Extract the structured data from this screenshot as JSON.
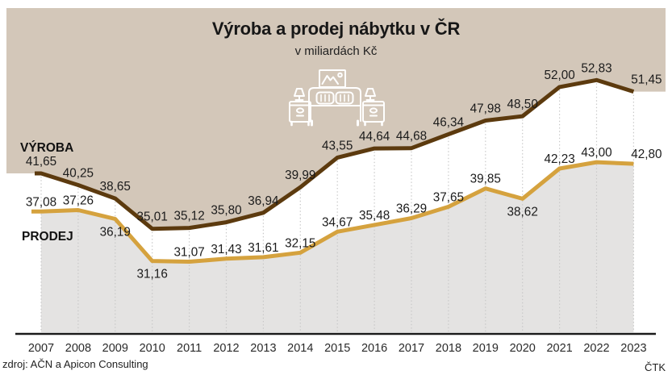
{
  "header": {
    "title": "Výroba a prodej nábytku v ČR",
    "subtitle": "v miliardách Kč"
  },
  "footer": {
    "source": "zdroj: AČN a Apicon Consulting",
    "agency": "ČTK"
  },
  "icon": {
    "name": "bedroom-furniture",
    "color": "#ffffff"
  },
  "colors": {
    "background": "#ffffff",
    "area_above": "#d3c7b9",
    "area_below": "#e4e3e2",
    "vyroba_line": "#5c3a0e",
    "prodej_line": "#d5a23e",
    "grid": "#c7c7c7",
    "axis": "#1a1a1a",
    "label_text": "#1b1b1b"
  },
  "chart_data": {
    "type": "line",
    "title": "Výroba a prodej nábytku v ČR",
    "subtitle": "v miliardách Kč",
    "units": "mld. Kč",
    "x": [
      2007,
      2008,
      2009,
      2010,
      2011,
      2012,
      2013,
      2014,
      2015,
      2016,
      2017,
      2018,
      2019,
      2020,
      2021,
      2022,
      2023
    ],
    "series": [
      {
        "name": "VÝROBA",
        "color": "#5c3a0e",
        "values": [
          41.65,
          40.25,
          38.65,
          35.01,
          35.12,
          35.8,
          36.94,
          39.99,
          43.55,
          44.64,
          44.68,
          46.34,
          47.98,
          48.5,
          52.0,
          52.83,
          51.45
        ],
        "labels": [
          "41,65",
          "40,25",
          "38,65",
          "35,01",
          "35,12",
          "35,80",
          "36,94",
          "39,99",
          "43,55",
          "44,64",
          "44,68",
          "46,34",
          "47,98",
          "48,50",
          "52,00",
          "52,83",
          "51,45"
        ]
      },
      {
        "name": "PRODEJ",
        "color": "#d5a23e",
        "values": [
          37.08,
          37.26,
          36.19,
          31.16,
          31.07,
          31.43,
          31.61,
          32.15,
          34.67,
          35.48,
          36.29,
          37.65,
          39.85,
          38.62,
          42.23,
          43.0,
          42.8
        ],
        "labels": [
          "37,08",
          "37,26",
          "36,19",
          "31,16",
          "31,07",
          "31,43",
          "31,61",
          "32,15",
          "34,67",
          "35,48",
          "36,29",
          "37,65",
          "39,85",
          "38,62",
          "42,23",
          "43,00",
          "42,80"
        ]
      }
    ],
    "label_below_indices_prodej": [
      2,
      3,
      13
    ],
    "grid": "vertical-dotted",
    "legend_position": "inline-left",
    "ylim": [
      22,
      61
    ],
    "xlabel": "",
    "ylabel": ""
  }
}
